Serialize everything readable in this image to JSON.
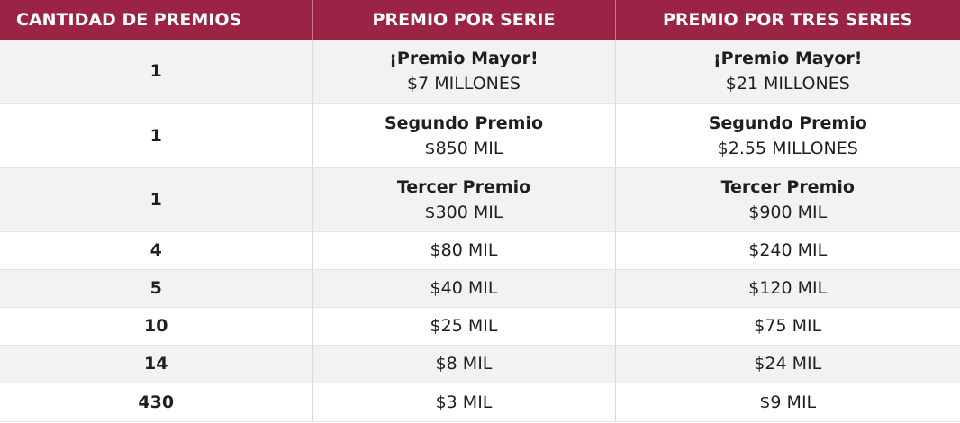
{
  "header": {
    "col1": "CANTIDAD DE PREMIOS",
    "col2": "PREMIO POR SERIE",
    "col3": "PREMIO POR TRES SERIES"
  },
  "rows": [
    {
      "qty": "1",
      "serie": {
        "title": "¡Premio Mayor!",
        "amount": "$7 MILLONES"
      },
      "tres": {
        "title": "¡Premio Mayor!",
        "amount": "$21 MILLONES"
      }
    },
    {
      "qty": "1",
      "serie": {
        "title": "Segundo Premio",
        "amount": "$850 MIL"
      },
      "tres": {
        "title": "Segundo Premio",
        "amount": "$2.55 MILLONES"
      }
    },
    {
      "qty": "1",
      "serie": {
        "title": "Tercer Premio",
        "amount": "$300 MIL"
      },
      "tres": {
        "title": "Tercer Premio",
        "amount": "$900 MIL"
      }
    },
    {
      "qty": "4",
      "serie": {
        "amount": "$80 MIL"
      },
      "tres": {
        "amount": "$240 MIL"
      }
    },
    {
      "qty": "5",
      "serie": {
        "amount": "$40 MIL"
      },
      "tres": {
        "amount": "$120 MIL"
      }
    },
    {
      "qty": "10",
      "serie": {
        "amount": "$25 MIL"
      },
      "tres": {
        "amount": "$75 MIL"
      }
    },
    {
      "qty": "14",
      "serie": {
        "amount": "$8 MIL"
      },
      "tres": {
        "amount": "$24 MIL"
      }
    },
    {
      "qty": "430",
      "serie": {
        "amount": "$3 MIL"
      },
      "tres": {
        "amount": "$9 MIL"
      }
    }
  ],
  "colors": {
    "header_bg": "#9b2346",
    "header_text": "#ffffff",
    "stripe": "#f2f2f2"
  }
}
